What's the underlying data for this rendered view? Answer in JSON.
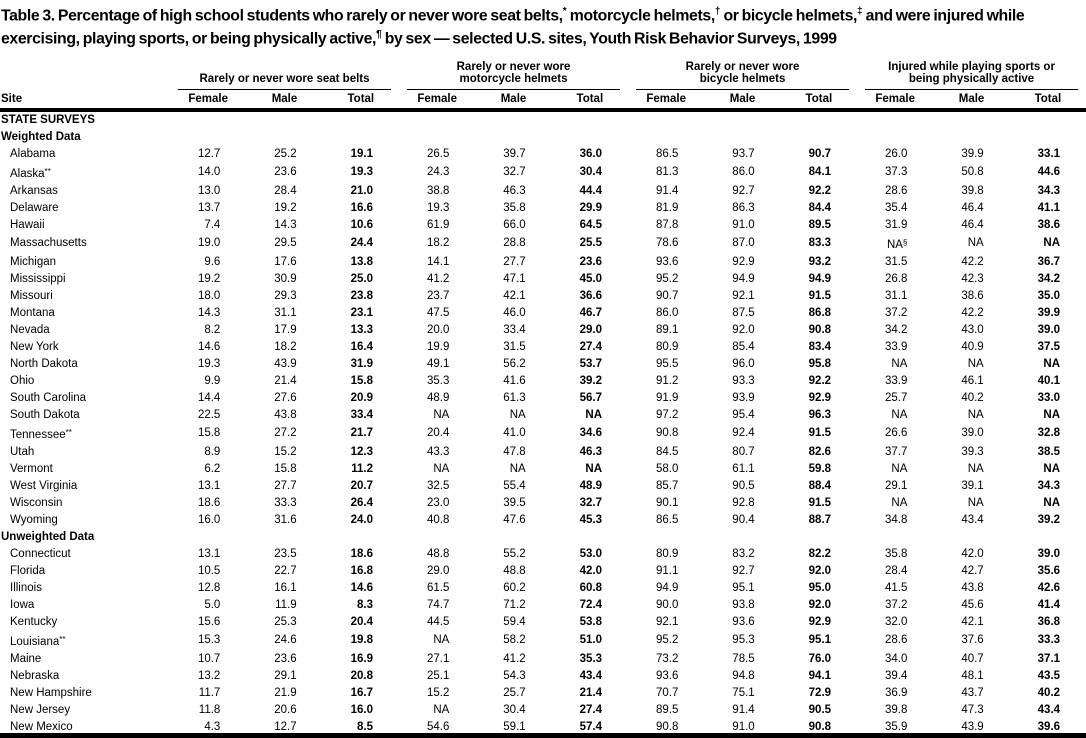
{
  "title": "Table 3. Percentage of high school students who rarely or never wore seat belts,* motorcycle helmets,† or bicycle helmets,‡ and were injured while exercising, playing sports, or being physically active,¶ by sex — selected U.S. sites, Youth Risk Behavior Surveys, 1999",
  "table": {
    "site_header": "Site",
    "sub_headers": [
      "Female",
      "Male",
      "Total"
    ],
    "groups": [
      {
        "id": "seatbelts",
        "lines": [
          "Rarely or never wore seat belts"
        ]
      },
      {
        "id": "motorcycle-helmets",
        "lines": [
          "Rarely or never wore",
          "motorcycle helmets"
        ]
      },
      {
        "id": "bicycle-helmets",
        "lines": [
          "Rarely or never wore",
          "bicycle helmets"
        ]
      },
      {
        "id": "injured",
        "lines": [
          "Injured while playing sports or",
          "being physically active"
        ]
      }
    ],
    "rows": [
      {
        "section": "STATE SURVEYS"
      },
      {
        "section": "Weighted Data"
      },
      {
        "site": "Alabama",
        "values": [
          "12.7",
          "25.2",
          "19.1",
          "26.5",
          "39.7",
          "36.0",
          "86.5",
          "93.7",
          "90.7",
          "26.0",
          "39.9",
          "33.1"
        ]
      },
      {
        "site": "Alaska**",
        "values": [
          "14.0",
          "23.6",
          "19.3",
          "24.3",
          "32.7",
          "30.4",
          "81.3",
          "86.0",
          "84.1",
          "37.3",
          "50.8",
          "44.6"
        ]
      },
      {
        "site": "Arkansas",
        "values": [
          "13.0",
          "28.4",
          "21.0",
          "38.8",
          "46.3",
          "44.4",
          "91.4",
          "92.7",
          "92.2",
          "28.6",
          "39.8",
          "34.3"
        ]
      },
      {
        "site": "Delaware",
        "values": [
          "13.7",
          "19.2",
          "16.6",
          "19.3",
          "35.8",
          "29.9",
          "81.9",
          "86.3",
          "84.4",
          "35.4",
          "46.4",
          "41.1"
        ]
      },
      {
        "site": "Hawaii",
        "values": [
          "7.4",
          "14.3",
          "10.6",
          "61.9",
          "66.0",
          "64.5",
          "87.8",
          "91.0",
          "89.5",
          "31.9",
          "46.4",
          "38.6"
        ]
      },
      {
        "site": "Massachusetts",
        "values": [
          "19.0",
          "29.5",
          "24.4",
          "18.2",
          "28.8",
          "25.5",
          "78.6",
          "87.0",
          "83.3",
          "NA§",
          "NA",
          "NA"
        ]
      },
      {
        "site": "Michigan",
        "values": [
          "9.6",
          "17.6",
          "13.8",
          "14.1",
          "27.7",
          "23.6",
          "93.6",
          "92.9",
          "93.2",
          "31.5",
          "42.2",
          "36.7"
        ]
      },
      {
        "site": "Mississippi",
        "values": [
          "19.2",
          "30.9",
          "25.0",
          "41.2",
          "47.1",
          "45.0",
          "95.2",
          "94.9",
          "94.9",
          "26.8",
          "42.3",
          "34.2"
        ]
      },
      {
        "site": "Missouri",
        "values": [
          "18.0",
          "29.3",
          "23.8",
          "23.7",
          "42.1",
          "36.6",
          "90.7",
          "92.1",
          "91.5",
          "31.1",
          "38.6",
          "35.0"
        ]
      },
      {
        "site": "Montana",
        "values": [
          "14.3",
          "31.1",
          "23.1",
          "47.5",
          "46.0",
          "46.7",
          "86.0",
          "87.5",
          "86.8",
          "37.2",
          "42.2",
          "39.9"
        ]
      },
      {
        "site": "Nevada",
        "values": [
          "8.2",
          "17.9",
          "13.3",
          "20.0",
          "33.4",
          "29.0",
          "89.1",
          "92.0",
          "90.8",
          "34.2",
          "43.0",
          "39.0"
        ]
      },
      {
        "site": "New York",
        "values": [
          "14.6",
          "18.2",
          "16.4",
          "19.9",
          "31.5",
          "27.4",
          "80.9",
          "85.4",
          "83.4",
          "33.9",
          "40.9",
          "37.5"
        ]
      },
      {
        "site": "North Dakota",
        "values": [
          "19.3",
          "43.9",
          "31.9",
          "49.1",
          "56.2",
          "53.7",
          "95.5",
          "96.0",
          "95.8",
          "NA",
          "NA",
          "NA"
        ]
      },
      {
        "site": "Ohio",
        "values": [
          "9.9",
          "21.4",
          "15.8",
          "35.3",
          "41.6",
          "39.2",
          "91.2",
          "93.3",
          "92.2",
          "33.9",
          "46.1",
          "40.1"
        ]
      },
      {
        "site": "South Carolina",
        "values": [
          "14.4",
          "27.6",
          "20.9",
          "48.9",
          "61.3",
          "56.7",
          "91.9",
          "93.9",
          "92.9",
          "25.7",
          "40.2",
          "33.0"
        ]
      },
      {
        "site": "South Dakota",
        "values": [
          "22.5",
          "43.8",
          "33.4",
          "NA",
          "NA",
          "NA",
          "97.2",
          "95.4",
          "96.3",
          "NA",
          "NA",
          "NA"
        ]
      },
      {
        "site": "Tennessee**",
        "values": [
          "15.8",
          "27.2",
          "21.7",
          "20.4",
          "41.0",
          "34.6",
          "90.8",
          "92.4",
          "91.5",
          "26.6",
          "39.0",
          "32.8"
        ]
      },
      {
        "site": "Utah",
        "values": [
          "8.9",
          "15.2",
          "12.3",
          "43.3",
          "47.8",
          "46.3",
          "84.5",
          "80.7",
          "82.6",
          "37.7",
          "39.3",
          "38.5"
        ]
      },
      {
        "site": "Vermont",
        "values": [
          "6.2",
          "15.8",
          "11.2",
          "NA",
          "NA",
          "NA",
          "58.0",
          "61.1",
          "59.8",
          "NA",
          "NA",
          "NA"
        ]
      },
      {
        "site": "West Virginia",
        "values": [
          "13.1",
          "27.7",
          "20.7",
          "32.5",
          "55.4",
          "48.9",
          "85.7",
          "90.5",
          "88.4",
          "29.1",
          "39.1",
          "34.3"
        ]
      },
      {
        "site": "Wisconsin",
        "values": [
          "18.6",
          "33.3",
          "26.4",
          "23.0",
          "39.5",
          "32.7",
          "90.1",
          "92.8",
          "91.5",
          "NA",
          "NA",
          "NA"
        ]
      },
      {
        "site": "Wyoming",
        "values": [
          "16.0",
          "31.6",
          "24.0",
          "40.8",
          "47.6",
          "45.3",
          "86.5",
          "90.4",
          "88.7",
          "34.8",
          "43.4",
          "39.2"
        ]
      },
      {
        "section": "Unweighted Data"
      },
      {
        "site": "Connecticut",
        "values": [
          "13.1",
          "23.5",
          "18.6",
          "48.8",
          "55.2",
          "53.0",
          "80.9",
          "83.2",
          "82.2",
          "35.8",
          "42.0",
          "39.0"
        ]
      },
      {
        "site": "Florida",
        "values": [
          "10.5",
          "22.7",
          "16.8",
          "29.0",
          "48.8",
          "42.0",
          "91.1",
          "92.7",
          "92.0",
          "28.4",
          "42.7",
          "35.6"
        ]
      },
      {
        "site": "Illinois",
        "values": [
          "12.8",
          "16.1",
          "14.6",
          "61.5",
          "60.2",
          "60.8",
          "94.9",
          "95.1",
          "95.0",
          "41.5",
          "43.8",
          "42.6"
        ]
      },
      {
        "site": "Iowa",
        "values": [
          "5.0",
          "11.9",
          "8.3",
          "74.7",
          "71.2",
          "72.4",
          "90.0",
          "93.8",
          "92.0",
          "37.2",
          "45.6",
          "41.4"
        ]
      },
      {
        "site": "Kentucky",
        "values": [
          "15.6",
          "25.3",
          "20.4",
          "44.5",
          "59.4",
          "53.8",
          "92.1",
          "93.6",
          "92.9",
          "32.0",
          "42.1",
          "36.8"
        ]
      },
      {
        "site": "Louisiana**",
        "values": [
          "15.3",
          "24.6",
          "19.8",
          "NA",
          "58.2",
          "51.0",
          "95.2",
          "95.3",
          "95.1",
          "28.6",
          "37.6",
          "33.3"
        ]
      },
      {
        "site": "Maine",
        "values": [
          "10.7",
          "23.6",
          "16.9",
          "27.1",
          "41.2",
          "35.3",
          "73.2",
          "78.5",
          "76.0",
          "34.0",
          "40.7",
          "37.1"
        ]
      },
      {
        "site": "Nebraska",
        "values": [
          "13.2",
          "29.1",
          "20.8",
          "25.1",
          "54.3",
          "43.4",
          "93.6",
          "94.8",
          "94.1",
          "39.4",
          "48.1",
          "43.5"
        ]
      },
      {
        "site": "New Hampshire",
        "values": [
          "11.7",
          "21.9",
          "16.7",
          "15.2",
          "25.7",
          "21.4",
          "70.7",
          "75.1",
          "72.9",
          "36.9",
          "43.7",
          "40.2"
        ]
      },
      {
        "site": "New Jersey",
        "values": [
          "11.8",
          "20.6",
          "16.0",
          "NA",
          "30.4",
          "27.4",
          "89.5",
          "91.4",
          "90.5",
          "39.8",
          "47.3",
          "43.4"
        ]
      },
      {
        "site": "New Mexico",
        "values": [
          "4.3",
          "12.7",
          "8.5",
          "54.6",
          "59.1",
          "57.4",
          "90.8",
          "91.0",
          "90.8",
          "35.9",
          "43.9",
          "39.6"
        ]
      }
    ]
  }
}
